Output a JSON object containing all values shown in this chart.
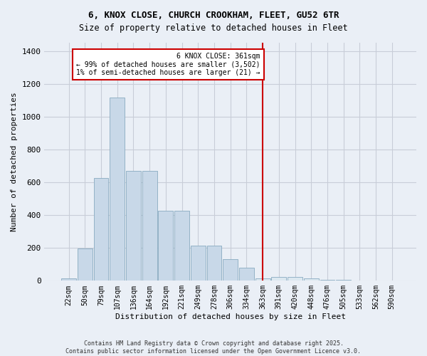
{
  "title_line1": "6, KNOX CLOSE, CHURCH CROOKHAM, FLEET, GU52 6TR",
  "title_line2": "Size of property relative to detached houses in Fleet",
  "xlabel": "Distribution of detached houses by size in Fleet",
  "ylabel": "Number of detached properties",
  "bar_labels": [
    "22sqm",
    "50sqm",
    "79sqm",
    "107sqm",
    "136sqm",
    "164sqm",
    "192sqm",
    "221sqm",
    "249sqm",
    "278sqm",
    "306sqm",
    "334sqm",
    "363sqm",
    "391sqm",
    "420sqm",
    "448sqm",
    "476sqm",
    "505sqm",
    "533sqm",
    "562sqm",
    "590sqm"
  ],
  "bar_values": [
    15,
    195,
    625,
    1115,
    670,
    670,
    425,
    425,
    215,
    215,
    130,
    80,
    15,
    25,
    25,
    15,
    5,
    5,
    0,
    0,
    0
  ],
  "bar_color_left": "#c8d8e8",
  "bar_color_right": "#dce8f0",
  "bar_edgecolor": "#88aac0",
  "vline_pos": 12,
  "vline_color": "#cc0000",
  "annotation_line1": "6 KNOX CLOSE: 361sqm",
  "annotation_line2": "← 99% of detached houses are smaller (3,502)",
  "annotation_line3": "1% of semi-detached houses are larger (21) →",
  "background_color": "#eaeff6",
  "grid_color": "#c8cdd8",
  "footer": "Contains HM Land Registry data © Crown copyright and database right 2025.\nContains public sector information licensed under the Open Government Licence v3.0.",
  "ylim_max": 1450,
  "yticks": [
    0,
    200,
    400,
    600,
    800,
    1000,
    1200,
    1400
  ]
}
